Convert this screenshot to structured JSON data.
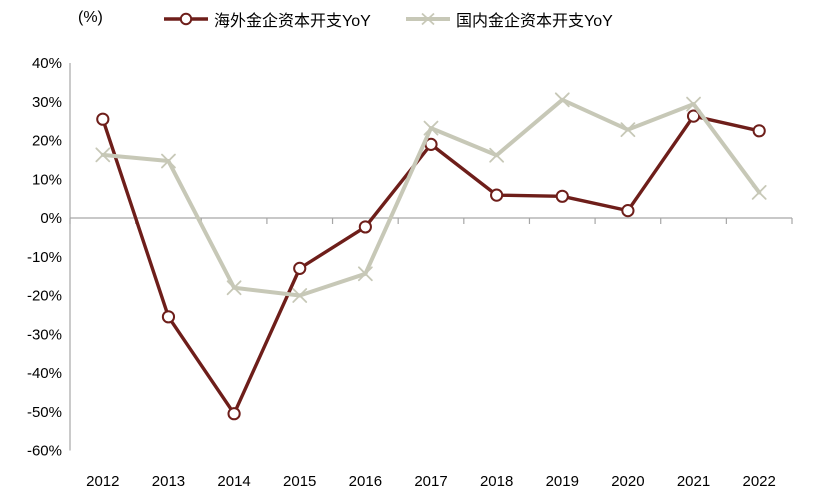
{
  "chart_data": {
    "type": "line",
    "unit_label": "(%)",
    "categories": [
      "2012",
      "2013",
      "2014",
      "2015",
      "2016",
      "2017",
      "2018",
      "2019",
      "2020",
      "2021",
      "2022"
    ],
    "series": [
      {
        "name": "海外金企资本开支YoY",
        "marker": "circle",
        "color": "#6e1e1a",
        "values": [
          25.5,
          -25.5,
          -50.5,
          -13.0,
          -2.3,
          19.0,
          5.9,
          5.6,
          1.9,
          26.3,
          22.5
        ]
      },
      {
        "name": "国内金企资本开支YoY",
        "marker": "x",
        "color": "#c7c8b7",
        "values": [
          16.3,
          14.7,
          -18.0,
          -20.0,
          -14.4,
          23.2,
          16.2,
          30.5,
          22.8,
          29.4,
          6.6
        ]
      }
    ],
    "ylim": [
      -60,
      40
    ],
    "ytick_step": 10,
    "ytick_suffix": "%",
    "xlabel": "",
    "ylabel": "",
    "title": "",
    "grid": false,
    "legend_position": "top",
    "axis_color": "#a6a6a6",
    "text_color": "#000000",
    "marker_fill": "#ffffff"
  }
}
